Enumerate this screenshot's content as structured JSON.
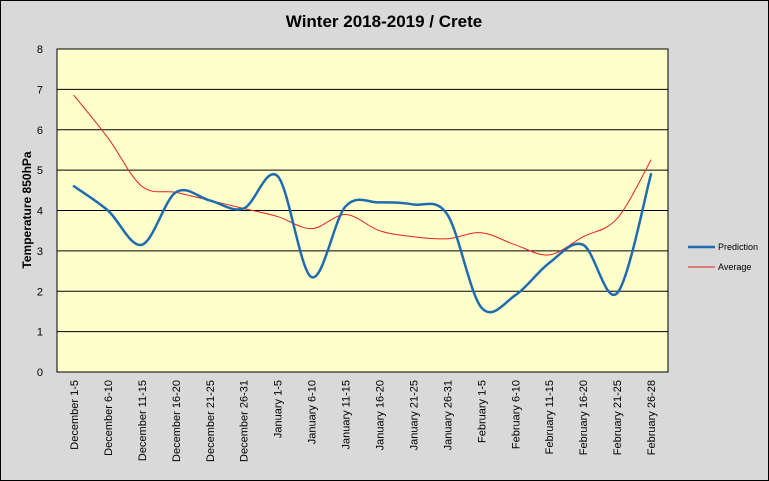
{
  "chart_data": {
    "type": "line",
    "title": "Winter 2018-2019 / Crete",
    "xlabel": "",
    "ylabel": "Temperature 850hPa",
    "ylim": [
      0,
      8
    ],
    "yticks": [
      "0",
      "1",
      "2",
      "3",
      "4",
      "5",
      "6",
      "7",
      "8"
    ],
    "grid": true,
    "legend": "right",
    "colors": {
      "background": "#d9d9d9",
      "plot_area": "#ffffcc",
      "grid": "#000000",
      "prediction": "#1f6bb0",
      "average": "#e0211c"
    },
    "categories": [
      "December 1-5",
      "December 6-10",
      "December 11-15",
      "December 16-20",
      "December 21-25",
      "December 26-31",
      "January 1-5",
      "January 6-10",
      "January 11-15",
      "January 16-20",
      "January 21-25",
      "January 26-31",
      "February 1-5",
      "February 6-10",
      "February 11-15",
      "February 16-20",
      "February 21-25",
      "February 26-28"
    ],
    "series": [
      {
        "name": "Prediction",
        "values": [
          4.6,
          4.0,
          3.15,
          4.45,
          4.25,
          4.05,
          4.85,
          2.35,
          4.1,
          4.2,
          4.15,
          3.9,
          1.6,
          1.9,
          2.7,
          3.15,
          1.95,
          4.9
        ]
      },
      {
        "name": "Average",
        "values": [
          6.85,
          5.8,
          4.6,
          4.45,
          4.25,
          4.05,
          3.85,
          3.55,
          3.9,
          3.5,
          3.35,
          3.3,
          3.45,
          3.15,
          2.9,
          3.35,
          3.8,
          5.25
        ]
      }
    ]
  }
}
